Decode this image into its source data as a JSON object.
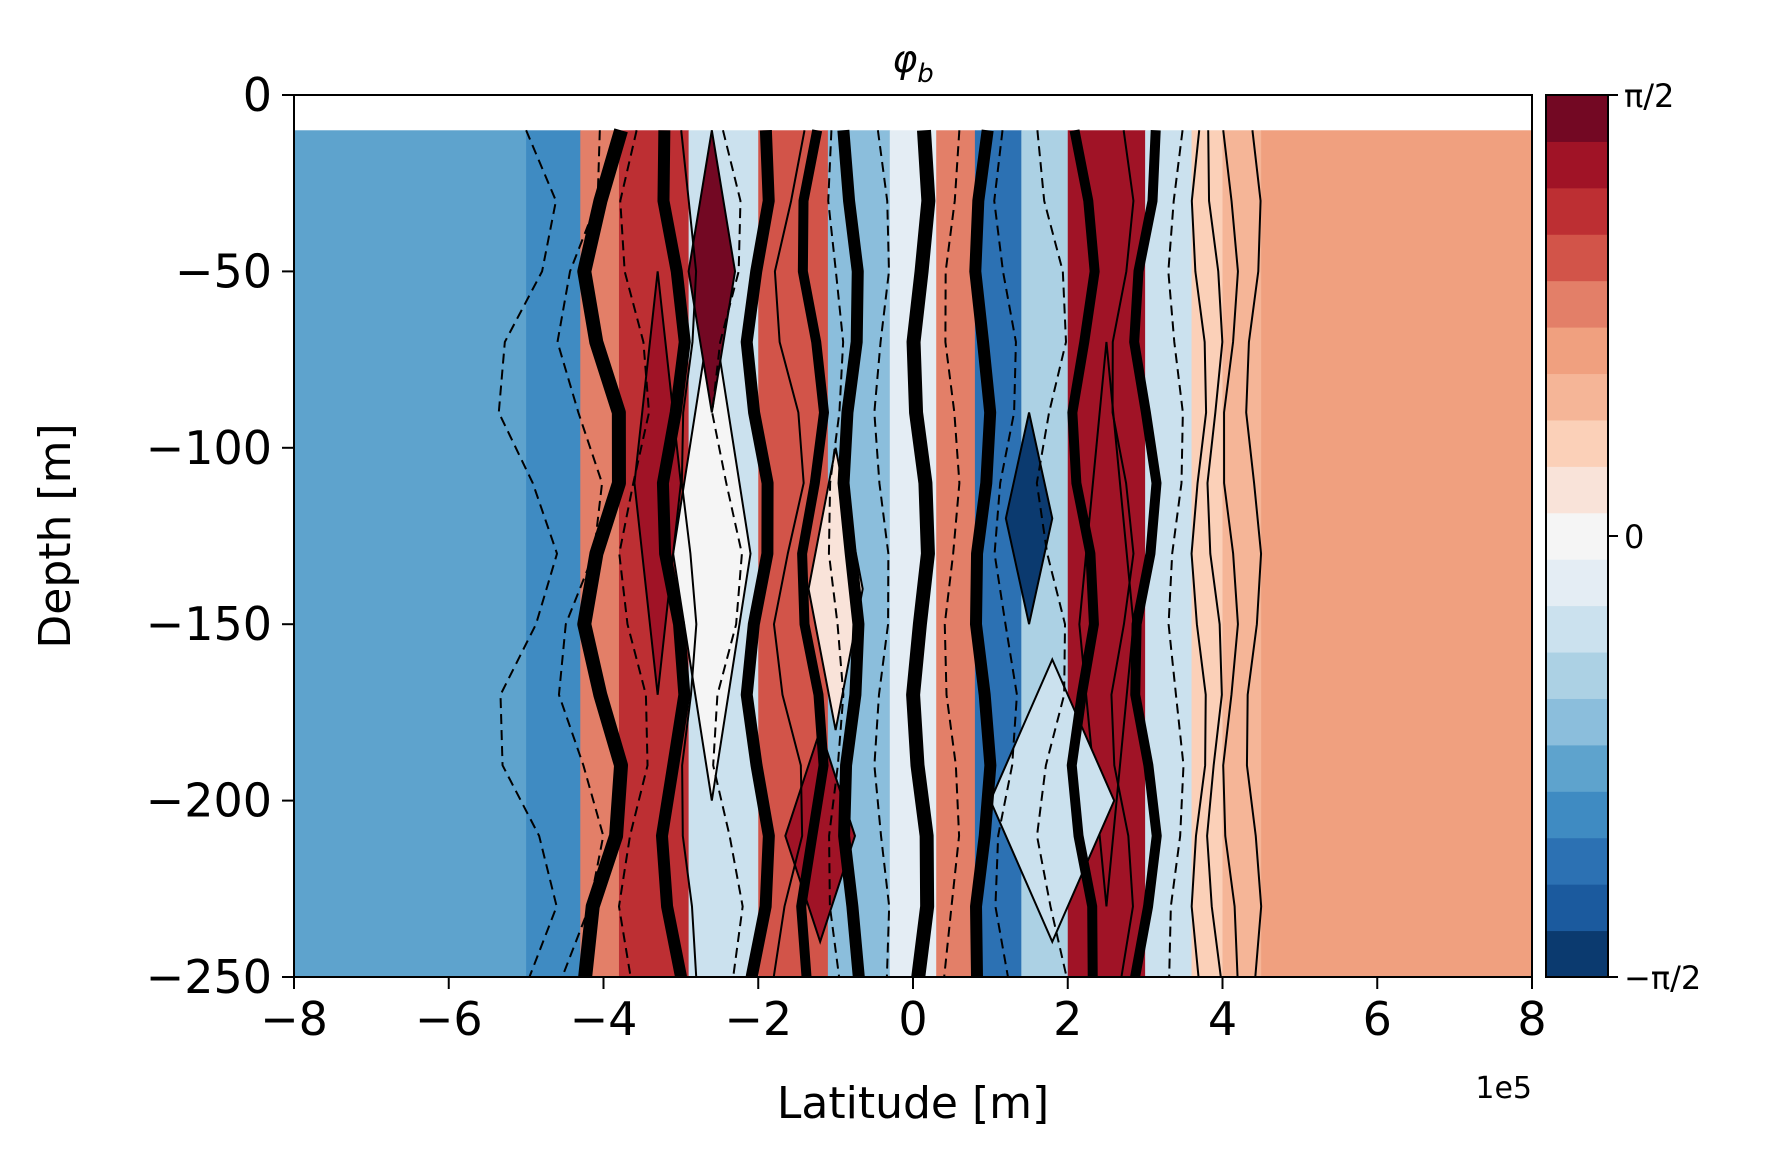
{
  "chart_data": {
    "type": "heatmap",
    "title_base": "φ",
    "title_sub": "b",
    "xlabel": "Latitude [m]",
    "ylabel": "Depth [m]",
    "x_offset_label": "1e5",
    "xlim": [
      -8,
      8
    ],
    "ylim": [
      -250,
      0
    ],
    "x_tick_labels": [
      "−8",
      "−6",
      "−4",
      "−2",
      "0",
      "2",
      "4",
      "6",
      "8"
    ],
    "x_tick_values": [
      -8,
      -6,
      -4,
      -2,
      0,
      2,
      4,
      6,
      8
    ],
    "y_tick_labels": [
      "0",
      "−50",
      "−100",
      "−150",
      "−200",
      "−250"
    ],
    "y_tick_values": [
      0,
      -50,
      -100,
      -150,
      -200,
      -250
    ],
    "data_top_depth": -10,
    "colorbar": {
      "tick_labels": [
        "π/2",
        "0",
        "−π/2"
      ],
      "tick_values": [
        1.5708,
        0,
        -1.5708
      ],
      "vmin": -1.5708,
      "vmax": 1.5708,
      "levels": 19,
      "colors": [
        "#0b3a6f",
        "#1b5a9e",
        "#2c71b3",
        "#3f8bc2",
        "#5ea3cd",
        "#8bbedc",
        "#acd1e4",
        "#cbe1ee",
        "#e4edf4",
        "#f5f5f5",
        "#f9e3d9",
        "#fbd0b8",
        "#f5b597",
        "#f0a07f",
        "#e37f68",
        "#d25449",
        "#bd2f33",
        "#a01326",
        "#730823"
      ]
    },
    "bands": [
      {
        "x": [
          -8.0,
          -5.0
        ],
        "level": 4
      },
      {
        "x": [
          -5.0,
          -4.3
        ],
        "level": 3
      },
      {
        "x": [
          -4.3,
          -3.8
        ],
        "level": 14
      },
      {
        "x": [
          -3.8,
          -2.9
        ],
        "level": 16
      },
      {
        "x": [
          -2.9,
          -2.0
        ],
        "level": 7
      },
      {
        "x": [
          -2.0,
          -1.1
        ],
        "level": 15
      },
      {
        "x": [
          -1.1,
          -0.3
        ],
        "level": 5
      },
      {
        "x": [
          -0.3,
          0.3
        ],
        "level": 8
      },
      {
        "x": [
          0.3,
          0.8
        ],
        "level": 14
      },
      {
        "x": [
          0.8,
          1.4
        ],
        "level": 2
      },
      {
        "x": [
          1.4,
          2.0
        ],
        "level": 6
      },
      {
        "x": [
          2.0,
          3.0
        ],
        "level": 17
      },
      {
        "x": [
          3.0,
          3.6
        ],
        "level": 7
      },
      {
        "x": [
          3.6,
          4.0
        ],
        "level": 11
      },
      {
        "x": [
          4.0,
          4.5
        ],
        "level": 12
      },
      {
        "x": [
          4.5,
          8.0
        ],
        "level": 13
      }
    ],
    "patches": [
      {
        "x": -2.6,
        "y": -130,
        "rx": 0.5,
        "ry": 70,
        "level": 9
      },
      {
        "x": -1.0,
        "y": -140,
        "rx": 0.35,
        "ry": 40,
        "level": 10
      },
      {
        "x": -3.3,
        "y": -110,
        "rx": 0.3,
        "ry": 60,
        "level": 17
      },
      {
        "x": 1.5,
        "y": -120,
        "rx": 0.3,
        "ry": 30,
        "level": 0
      },
      {
        "x": 2.5,
        "y": -150,
        "rx": 0.35,
        "ry": 80,
        "level": 17
      },
      {
        "x": -2.6,
        "y": -50,
        "rx": 0.3,
        "ry": 40,
        "level": 18
      },
      {
        "x": -1.2,
        "y": -210,
        "rx": 0.45,
        "ry": 30,
        "level": 17
      },
      {
        "x": 1.8,
        "y": -200,
        "rx": 0.8,
        "ry": 40,
        "level": 7
      }
    ],
    "contours": [
      {
        "x": -5.0,
        "dx": 0.4,
        "style": "dashed",
        "w": 2
      },
      {
        "x": -4.3,
        "dx": 0.3,
        "style": "dashed",
        "w": 2
      },
      {
        "x": -4.0,
        "dx": 0.25,
        "style": "solid",
        "w": 14
      },
      {
        "x": -3.6,
        "dx": 0.2,
        "style": "dashed",
        "w": 2
      },
      {
        "x": -3.1,
        "dx": 0.15,
        "style": "solid",
        "w": 12
      },
      {
        "x": -2.9,
        "dx": 0.1,
        "style": "solid",
        "w": 2
      },
      {
        "x": -2.4,
        "dx": 0.2,
        "style": "dashed",
        "w": 2
      },
      {
        "x": -2.0,
        "dx": 0.15,
        "style": "solid",
        "w": 12
      },
      {
        "x": -1.6,
        "dx": 0.2,
        "style": "solid",
        "w": 2
      },
      {
        "x": -1.3,
        "dx": 0.15,
        "style": "solid",
        "w": 10
      },
      {
        "x": -1.0,
        "dx": 0.1,
        "style": "dashed",
        "w": 2
      },
      {
        "x": -0.8,
        "dx": 0.1,
        "style": "solid",
        "w": 12
      },
      {
        "x": -0.4,
        "dx": 0.1,
        "style": "dashed",
        "w": 2
      },
      {
        "x": 0.1,
        "dx": 0.1,
        "style": "solid",
        "w": 14
      },
      {
        "x": 0.5,
        "dx": 0.1,
        "style": "dashed",
        "w": 2
      },
      {
        "x": 0.9,
        "dx": 0.1,
        "style": "solid",
        "w": 12
      },
      {
        "x": 1.2,
        "dx": 0.15,
        "style": "dashed",
        "w": 2
      },
      {
        "x": 1.8,
        "dx": 0.2,
        "style": "dashed",
        "w": 2
      },
      {
        "x": 2.2,
        "dx": 0.15,
        "style": "solid",
        "w": 10
      },
      {
        "x": 2.7,
        "dx": 0.15,
        "style": "solid",
        "w": 2
      },
      {
        "x": 3.0,
        "dx": 0.15,
        "style": "solid",
        "w": 10
      },
      {
        "x": 3.4,
        "dx": 0.1,
        "style": "dashed",
        "w": 2
      },
      {
        "x": 3.7,
        "dx": 0.1,
        "style": "solid",
        "w": 2
      },
      {
        "x": 3.9,
        "dx": 0.1,
        "style": "solid",
        "w": 2
      },
      {
        "x": 4.1,
        "dx": 0.1,
        "style": "solid",
        "w": 2
      },
      {
        "x": 4.4,
        "dx": 0.1,
        "style": "solid",
        "w": 2
      }
    ]
  }
}
